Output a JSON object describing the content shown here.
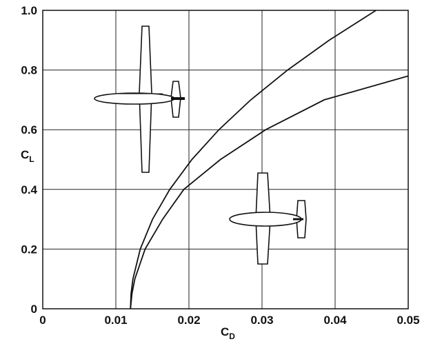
{
  "chart_data": {
    "type": "line",
    "xlabel": {
      "text": "C",
      "subscript": "D"
    },
    "ylabel": {
      "text": "C",
      "subscript": "L"
    },
    "xlim": [
      0,
      0.05
    ],
    "xticks": [
      0,
      0.01,
      0.02,
      0.03,
      0.04,
      0.05
    ],
    "ylim": [
      0,
      1
    ],
    "yticks": [
      0,
      0.2,
      0.4,
      0.6,
      0.8,
      {
        "value": 1,
        "label": "1.0"
      }
    ],
    "grid": true,
    "series": [
      {
        "color": "#111111",
        "x": [
          0.012,
          0.01208,
          0.01234,
          0.01334,
          0.01502,
          0.01738,
          0.0204,
          0.0241,
          0.02846,
          0.0335,
          0.0392,
          0.0456
        ],
        "values": [
          0,
          0.05,
          0.1,
          0.2,
          0.3,
          0.4,
          0.5,
          0.6,
          0.7,
          0.8,
          0.9,
          1.0
        ]
      },
      {
        "color": "#111111",
        "x": [
          0.012,
          0.0122,
          0.0126,
          0.014,
          0.0164,
          0.0193,
          0.0243,
          0.0305,
          0.0385,
          0.05
        ],
        "values": [
          0,
          0.05,
          0.1,
          0.2,
          0.3,
          0.4,
          0.5,
          0.6,
          0.7,
          0.78
        ]
      }
    ]
  }
}
